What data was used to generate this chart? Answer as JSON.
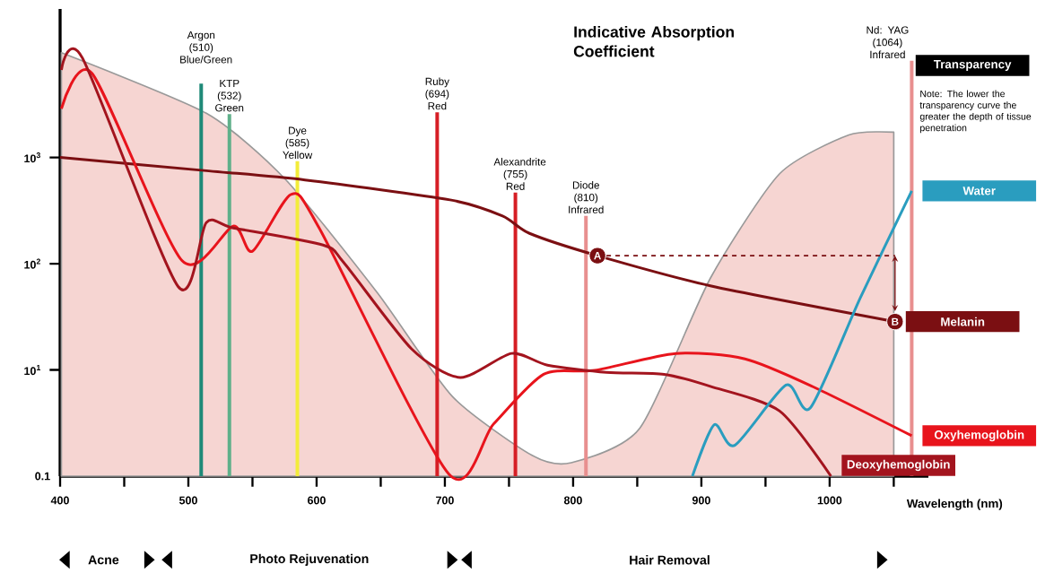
{
  "chart_data": {
    "type": "line",
    "title": "Indicative Absorption Coefficient",
    "xlabel": "Wavelength (nm)",
    "log": true,
    "legend": "right",
    "xlim": [
      400,
      1077
    ],
    "ylim": [
      1,
      25000
    ],
    "xticks": [
      400,
      {
        "value": 450,
        "label": null
      },
      500,
      {
        "value": 550,
        "label": null
      },
      600,
      {
        "value": 650,
        "label": null
      },
      700,
      {
        "value": 750,
        "label": null
      },
      800,
      {
        "value": 850,
        "label": null
      },
      900,
      {
        "value": 950,
        "label": null
      },
      1000,
      {
        "value": 1050,
        "label": null
      }
    ],
    "yticks": [
      {
        "value": 10,
        "label": "10$^{1}$"
      },
      {
        "value": 100,
        "label": "10$^{2}$"
      },
      {
        "value": 1000,
        "label": "10$^{3}$"
      }
    ],
    "series": [
      {
        "name": "Transparency",
        "type": "area",
        "color": "#f6d5d2",
        "x": [
          401,
          514,
          575.5,
          647.5,
          706,
          768,
          798.6,
          852,
          907,
          961,
          1015,
          1050
        ],
        "values": [
          9690,
          2606,
          626,
          53,
          5.6,
          1.57,
          1.34,
          2.83,
          73,
          703,
          1630,
          1730
        ]
      },
      {
        "name": "Melanin",
        "color": "#7b0f12",
        "x": [
          400,
          516,
          591,
          704,
          745,
          766,
          819,
          907,
          1051
        ],
        "values": [
          1000,
          747,
          614,
          399,
          281,
          193,
          119,
          62,
          28.5
        ]
      },
      {
        "name": "Oxyhemoglobin",
        "color": "#e8141c",
        "x": [
          401,
          425,
          495,
          535,
          550,
          580,
          602,
          703,
          738,
          777,
          817,
          880,
          934,
          987,
          1064
        ],
        "values": [
          2877,
          6170,
          107,
          226,
          131,
          449,
          217,
          1.05,
          3.1,
          9.1,
          9.9,
          14.3,
          12.7,
          6.95,
          2.4
        ]
      },
      {
        "name": "Deoxyhemoglobin",
        "color": "#a3141e",
        "x": [
          401,
          417.5,
          492,
          514,
          535,
          605,
          621,
          674,
          712,
          752,
          780,
          826,
          871,
          907,
          961,
          1001
        ],
        "values": [
          6670,
          8610,
          61,
          244,
          217,
          150,
          103,
          15.8,
          8.5,
          14.3,
          11.1,
          9.5,
          9.1,
          7.0,
          4.1,
          1
        ]
      },
      {
        "name": "Water",
        "color": "#2a9dbf",
        "x": [
          893,
          910,
          926,
          966,
          985,
          1024,
          1064
        ],
        "values": [
          1,
          3.05,
          1.95,
          7.2,
          4.4,
          48,
          485
        ]
      }
    ],
    "ref_lines": [
      {
        "axis": "x",
        "value": 510,
        "label": "Argon (510) Blue/Green",
        "color": "#1f8a78"
      },
      {
        "axis": "x",
        "value": 532,
        "label": "KTP (532) Green",
        "color": "#5fb08a"
      },
      {
        "axis": "x",
        "value": 585,
        "label": "Dye (585) Yellow",
        "color": "#f3ec3a"
      },
      {
        "axis": "x",
        "value": 694,
        "label": "Ruby (694) Red",
        "color": "#d61e25"
      },
      {
        "axis": "x",
        "value": 755,
        "label": "Alexandrite (755) Red",
        "color": "#d61e25"
      },
      {
        "axis": "x",
        "value": 810,
        "label": "Diode (810) Infrared",
        "color": "#e88f8f"
      },
      {
        "axis": "x",
        "value": 1064,
        "label": "Nd: YAG (1064) Infrared",
        "color": "#e88f8f"
      }
    ],
    "annotations": [
      "Note: The lower the transparency curve the greater the depth of tissue penetration",
      "0.1",
      "Acne",
      "Photo Rejuvenation",
      "Hair Removal",
      {
        "text": "A",
        "x": 819,
        "y": 119
      },
      {
        "text": "B",
        "x": 1051,
        "y": 28.5
      }
    ]
  }
}
